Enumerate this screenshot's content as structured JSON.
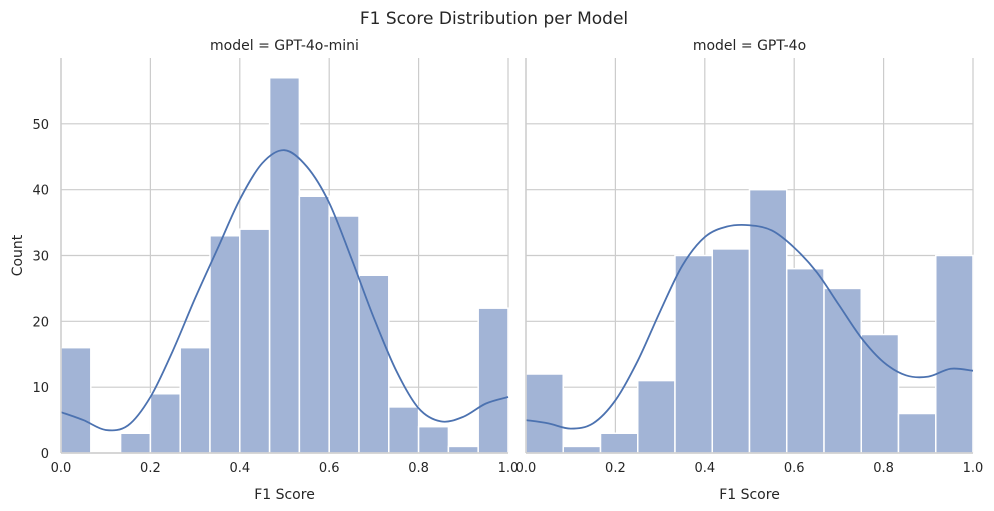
{
  "figure": {
    "suptitle": "F1 Score Distribution per Model",
    "colors": {
      "bar_fill": "#a2b4d6",
      "bar_edge": "#ffffff",
      "kde_line": "#4c72b0",
      "grid": "#cccccc",
      "spine": "#cccccc"
    }
  },
  "chart_data": [
    {
      "type": "bar",
      "title": "model = GPT-4o-mini",
      "xlabel": "F1 Score",
      "ylabel": "Count",
      "xlim": [
        0,
        1
      ],
      "ylim": [
        0,
        60
      ],
      "xticks": [
        "0.0",
        "0.2",
        "0.4",
        "0.6",
        "0.8",
        "1.0"
      ],
      "yticks": [
        "0",
        "10",
        "20",
        "30",
        "40",
        "50"
      ],
      "grid": true,
      "bin_edges": [
        0.0,
        0.0667,
        0.1333,
        0.2,
        0.2667,
        0.3333,
        0.4,
        0.4667,
        0.5333,
        0.6,
        0.6667,
        0.7333,
        0.8,
        0.8667,
        0.9333,
        1.0
      ],
      "values": [
        16,
        0,
        3,
        9,
        16,
        33,
        34,
        57,
        39,
        36,
        27,
        7,
        4,
        1,
        22
      ],
      "kde": {
        "x": [
          0.0,
          0.05,
          0.1,
          0.15,
          0.2,
          0.25,
          0.3,
          0.35,
          0.4,
          0.45,
          0.5,
          0.55,
          0.6,
          0.65,
          0.7,
          0.75,
          0.8,
          0.85,
          0.9,
          0.95,
          1.0
        ],
        "y": [
          6.2,
          5.0,
          3.5,
          4.2,
          8.5,
          15.5,
          23.5,
          31.0,
          38.5,
          44.0,
          46.0,
          43.5,
          38.0,
          29.5,
          20.5,
          12.5,
          6.8,
          4.8,
          5.5,
          7.5,
          8.5
        ]
      }
    },
    {
      "type": "bar",
      "title": "model = GPT-4o",
      "xlabel": "F1 Score",
      "ylabel": "",
      "xlim": [
        0,
        1
      ],
      "ylim": [
        0,
        60
      ],
      "xticks": [
        "0.0",
        "0.2",
        "0.4",
        "0.6",
        "0.8",
        "1.0"
      ],
      "yticks": [],
      "grid": true,
      "bin_edges": [
        0.0,
        0.0833,
        0.1667,
        0.25,
        0.3333,
        0.4167,
        0.5,
        0.5833,
        0.6667,
        0.75,
        0.8333,
        0.9167,
        1.0
      ],
      "values": [
        12,
        1,
        3,
        11,
        30,
        31,
        40,
        28,
        25,
        18,
        6,
        30
      ],
      "kde": {
        "x": [
          0.0,
          0.05,
          0.1,
          0.15,
          0.2,
          0.25,
          0.3,
          0.35,
          0.4,
          0.45,
          0.5,
          0.55,
          0.6,
          0.65,
          0.7,
          0.75,
          0.8,
          0.85,
          0.9,
          0.95,
          1.0
        ],
        "y": [
          5.0,
          4.5,
          3.7,
          4.5,
          8.0,
          14.0,
          21.5,
          28.5,
          32.8,
          34.4,
          34.6,
          33.8,
          31.2,
          27.5,
          22.5,
          17.5,
          13.8,
          11.8,
          11.6,
          12.8,
          12.5
        ]
      }
    }
  ]
}
